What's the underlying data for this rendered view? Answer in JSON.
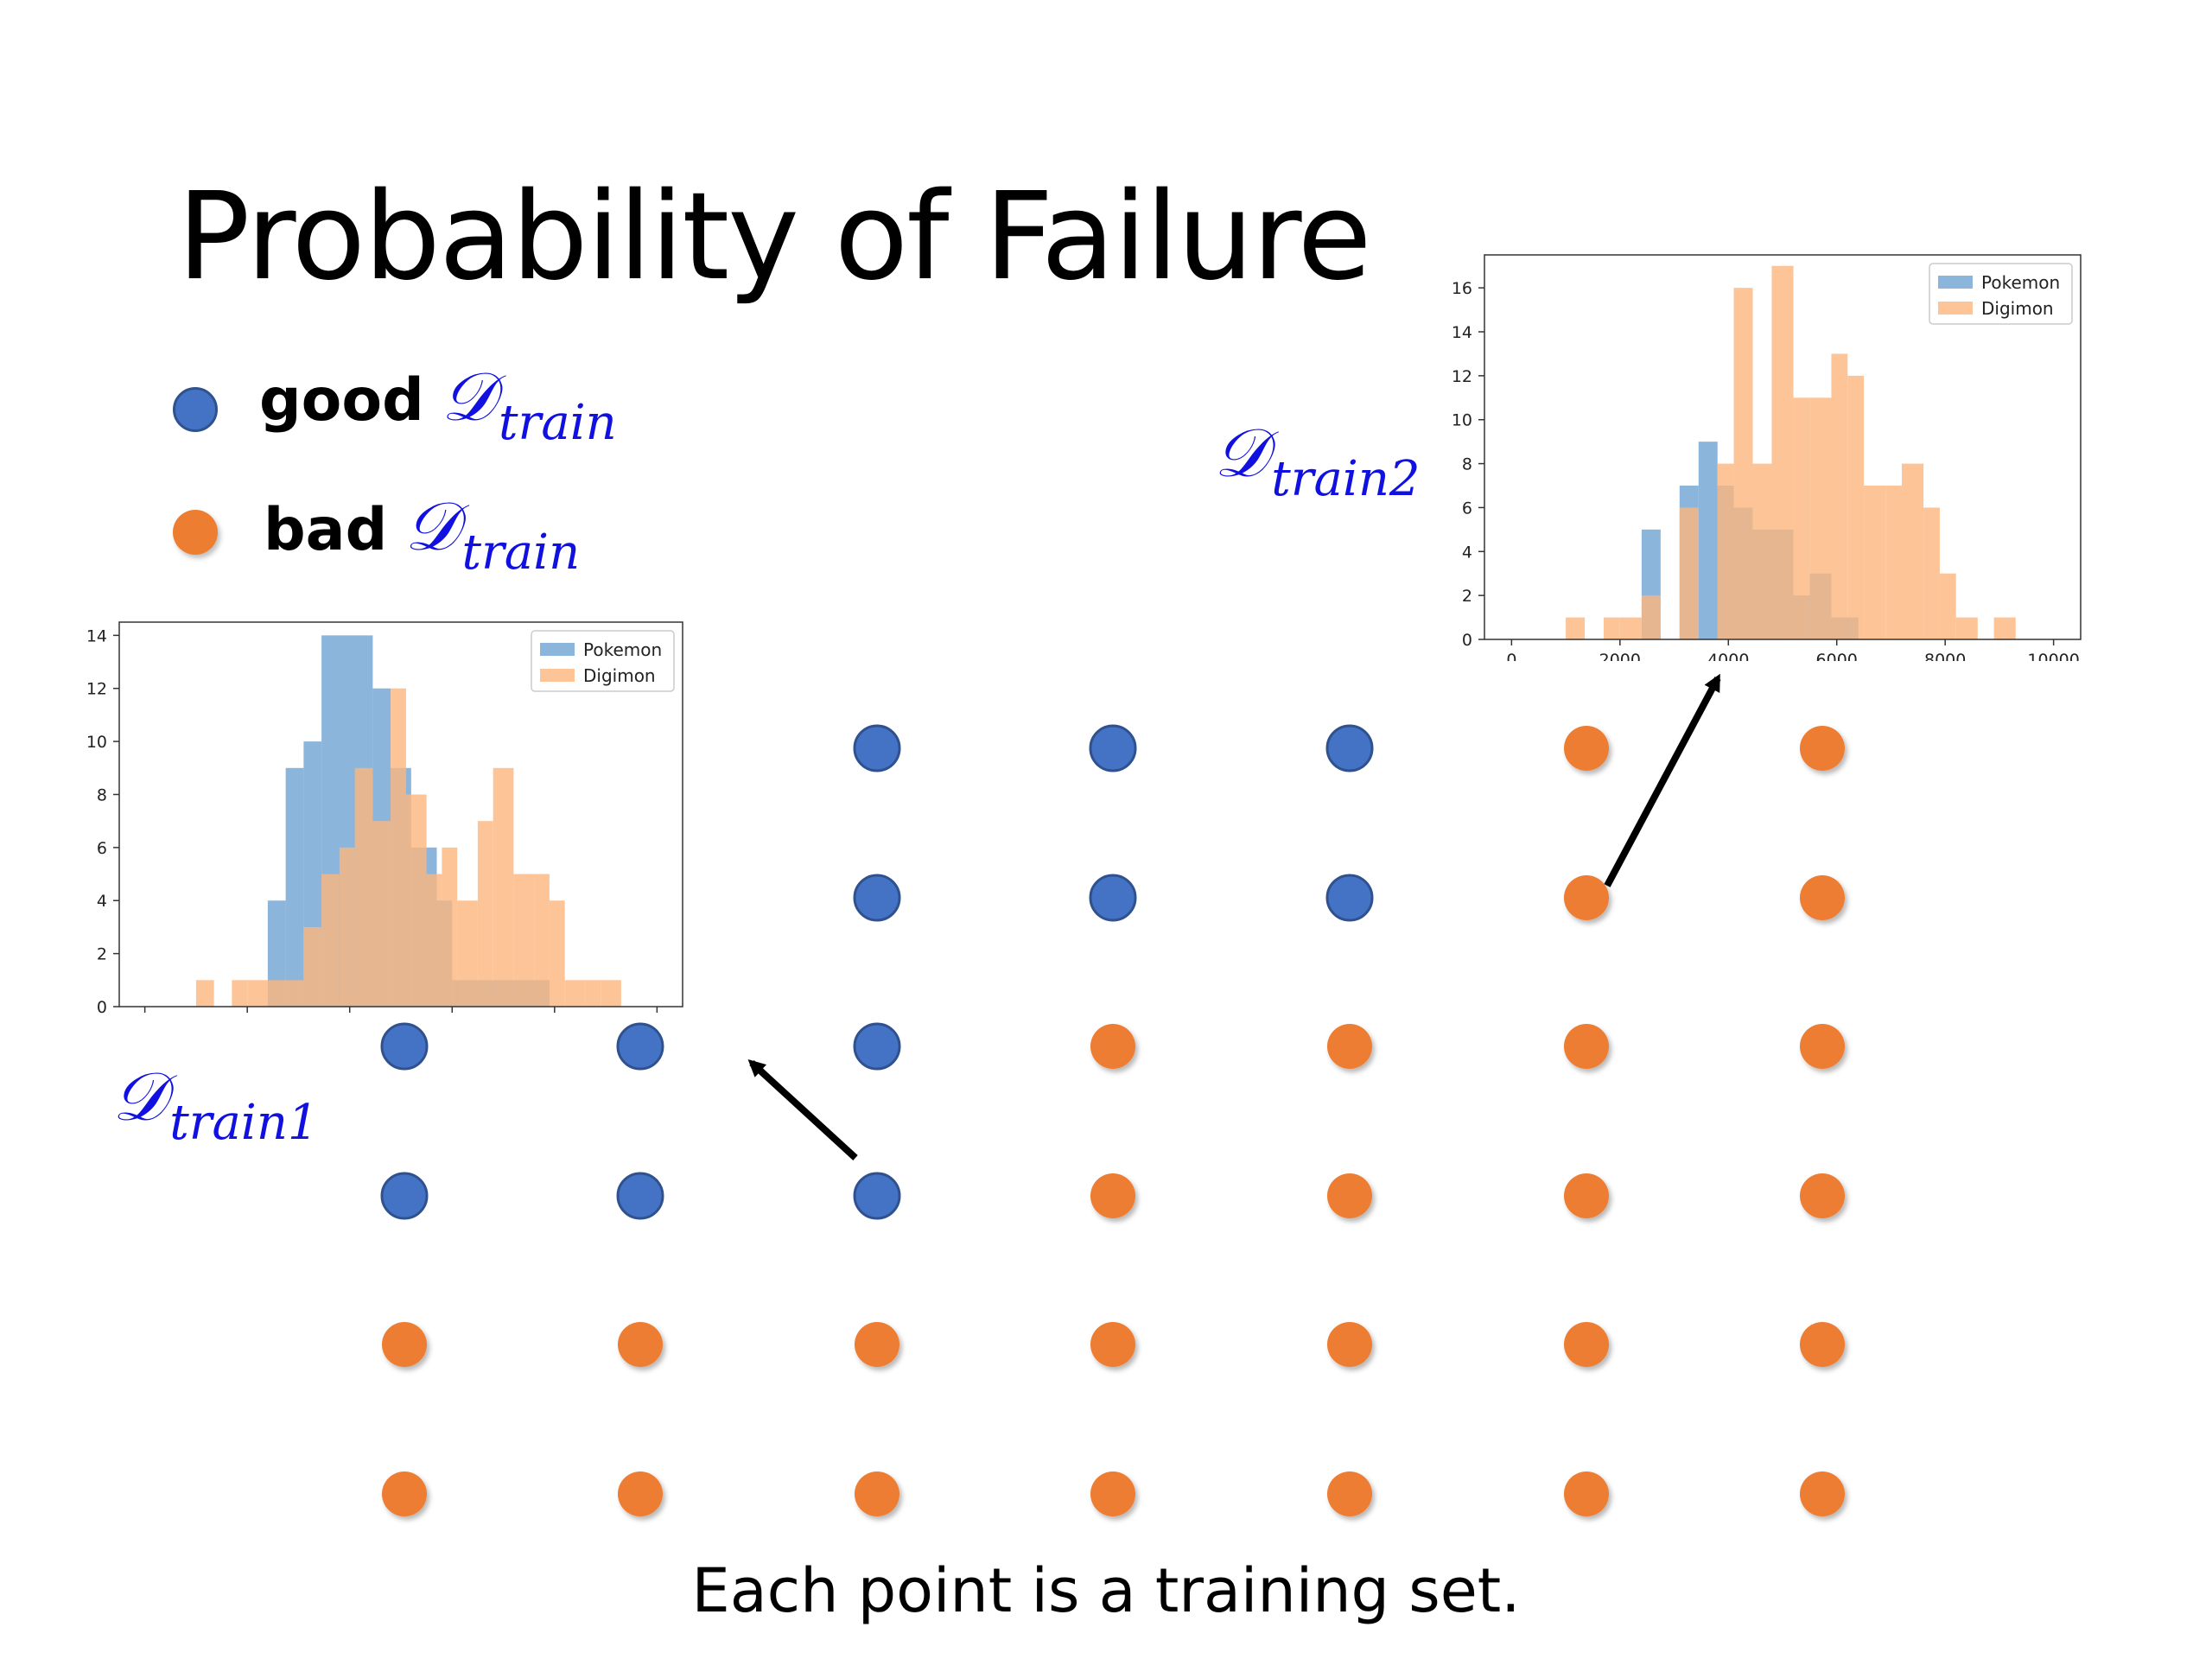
{
  "title": "Probability of Failure",
  "legend": {
    "good": {
      "word": "good",
      "math_symbol": "𝒟",
      "math_sub": "train",
      "color": "#4472c4"
    },
    "bad": {
      "word": "bad",
      "math_symbol": "𝒟",
      "math_sub": "train",
      "color": "#ed7d31"
    }
  },
  "labels": {
    "train1": {
      "symbol": "𝒟",
      "sub": "train1"
    },
    "train2": {
      "symbol": "𝒟",
      "sub": "train2"
    }
  },
  "caption": "Each point is a training set.",
  "grid": {
    "columns": 7,
    "rows": [
      [
        null,
        null,
        "good",
        "good",
        "good",
        "bad",
        "bad"
      ],
      [
        null,
        null,
        "good",
        "good",
        "good",
        "bad",
        "bad"
      ],
      [
        "good",
        "good",
        "good",
        "bad",
        "bad",
        "bad",
        "bad"
      ],
      [
        "good",
        "good",
        "good",
        "bad",
        "bad",
        "bad",
        "bad"
      ],
      [
        "bad",
        "bad",
        "bad",
        "bad",
        "bad",
        "bad",
        "bad"
      ],
      [
        "bad",
        "bad",
        "bad",
        "bad",
        "bad",
        "bad",
        "bad"
      ]
    ]
  },
  "chart_data": [
    {
      "type": "bar",
      "id": "train1",
      "legend_placement": "top-right",
      "xlim": [
        -500,
        10500
      ],
      "ylim": [
        0,
        14.5
      ],
      "xticks": [
        0,
        2000,
        4000,
        6000,
        8000,
        10000
      ],
      "yticks": [
        0,
        2,
        4,
        6,
        8,
        10,
        12,
        14
      ],
      "series": [
        {
          "name": "Pokemon",
          "color": "#6fa3d2",
          "bins": [
            [
              2400,
              2750,
              4
            ],
            [
              2750,
              3100,
              9
            ],
            [
              3100,
              3450,
              10
            ],
            [
              3450,
              4450,
              14
            ],
            [
              4450,
              4800,
              12
            ],
            [
              4800,
              5200,
              9
            ],
            [
              5200,
              5700,
              6
            ],
            [
              5700,
              6000,
              4
            ],
            [
              6000,
              7200,
              1
            ],
            [
              7200,
              7600,
              1
            ],
            [
              7600,
              7900,
              1
            ]
          ]
        },
        {
          "name": "Digimon",
          "color": "#fdb77d",
          "bins": [
            [
              1000,
              1350,
              1
            ],
            [
              1700,
              2000,
              1
            ],
            [
              2000,
              2400,
              1
            ],
            [
              2400,
              2750,
              1
            ],
            [
              2750,
              3100,
              1
            ],
            [
              3100,
              3450,
              3
            ],
            [
              3450,
              3800,
              5
            ],
            [
              3800,
              4100,
              6
            ],
            [
              4100,
              4450,
              9
            ],
            [
              4450,
              4800,
              7
            ],
            [
              4800,
              5100,
              12
            ],
            [
              5100,
              5500,
              8
            ],
            [
              5500,
              5800,
              5
            ],
            [
              5800,
              6100,
              6
            ],
            [
              6100,
              6500,
              4
            ],
            [
              6500,
              6800,
              7
            ],
            [
              6800,
              7200,
              9
            ],
            [
              7200,
              7600,
              5
            ],
            [
              7600,
              7900,
              5
            ],
            [
              7900,
              8200,
              4
            ],
            [
              8200,
              8600,
              1
            ],
            [
              8600,
              8900,
              1
            ],
            [
              8900,
              9300,
              1
            ]
          ]
        }
      ]
    },
    {
      "type": "bar",
      "id": "train2",
      "legend_placement": "top-right",
      "xlim": [
        -500,
        10500
      ],
      "ylim": [
        0,
        17.5
      ],
      "xticks": [
        0,
        2000,
        4000,
        6000,
        8000,
        10000
      ],
      "yticks": [
        0,
        2,
        4,
        6,
        8,
        10,
        12,
        14,
        16
      ],
      "series": [
        {
          "name": "Pokemon",
          "color": "#6fa3d2",
          "bins": [
            [
              2400,
              2750,
              5
            ],
            [
              3100,
              3450,
              7
            ],
            [
              3450,
              3800,
              9
            ],
            [
              3800,
              4100,
              7
            ],
            [
              4100,
              4450,
              6
            ],
            [
              4450,
              4800,
              5
            ],
            [
              4800,
              5200,
              5
            ],
            [
              5200,
              5500,
              2
            ],
            [
              5500,
              5900,
              3
            ],
            [
              5900,
              6400,
              1
            ]
          ]
        },
        {
          "name": "Digimon",
          "color": "#fdb77d",
          "bins": [
            [
              1000,
              1350,
              1
            ],
            [
              1700,
              2000,
              1
            ],
            [
              2000,
              2400,
              1
            ],
            [
              2400,
              2750,
              2
            ],
            [
              3100,
              3450,
              6
            ],
            [
              3800,
              4100,
              8
            ],
            [
              4100,
              4450,
              16
            ],
            [
              4450,
              4800,
              8
            ],
            [
              4800,
              5200,
              17
            ],
            [
              5200,
              5500,
              11
            ],
            [
              5500,
              5900,
              11
            ],
            [
              5900,
              6200,
              13
            ],
            [
              6200,
              6500,
              12
            ],
            [
              6500,
              6900,
              7
            ],
            [
              6900,
              7200,
              7
            ],
            [
              7200,
              7600,
              8
            ],
            [
              7600,
              7900,
              6
            ],
            [
              7900,
              8200,
              3
            ],
            [
              8200,
              8600,
              1
            ],
            [
              8900,
              9300,
              1
            ]
          ]
        }
      ]
    }
  ]
}
